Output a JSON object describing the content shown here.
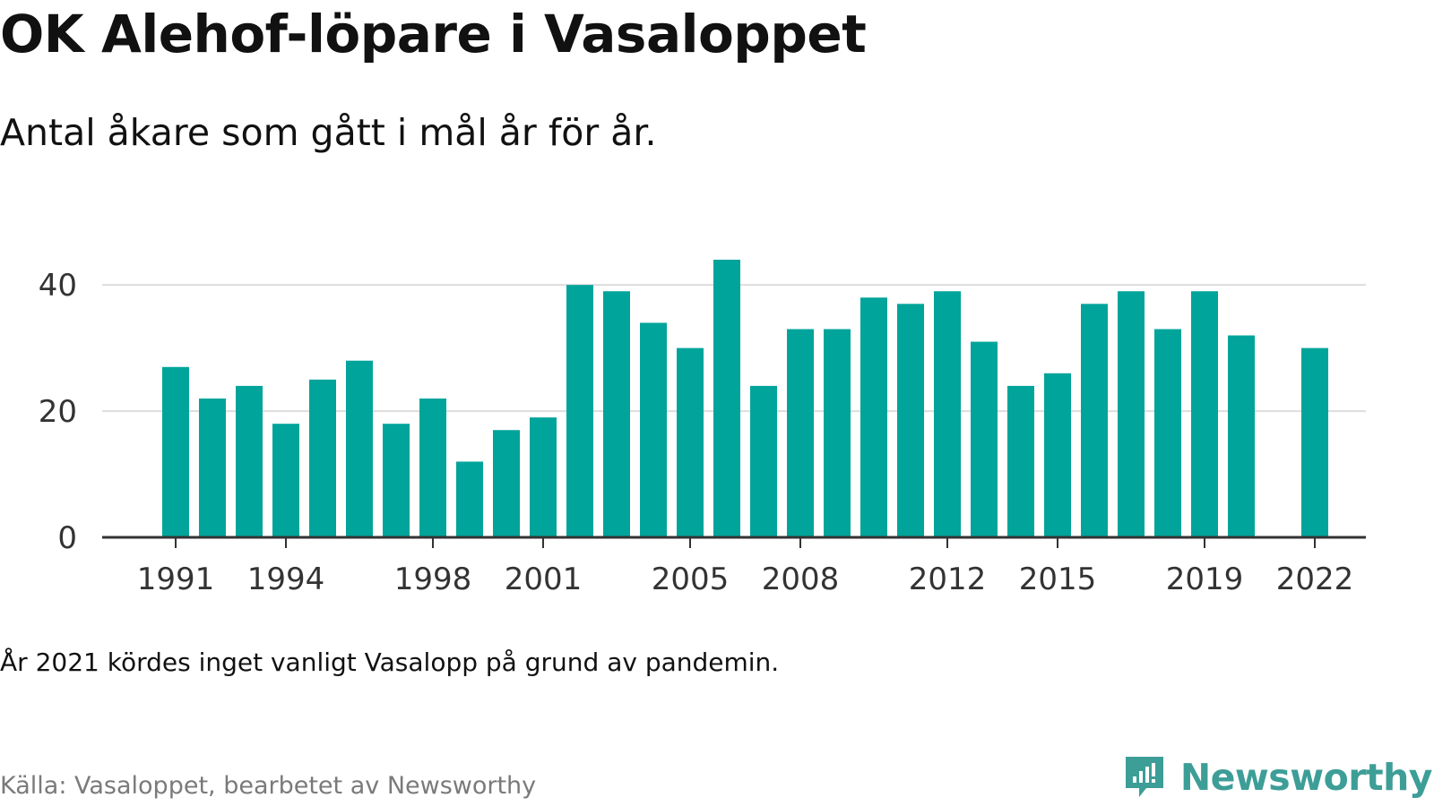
{
  "header": {
    "title": "OK Alehof-löpare i Vasaloppet",
    "subtitle": "Antal åkare som gått i mål år för år."
  },
  "footer": {
    "note": "År 2021 kördes inget vanligt Vasalopp på grund av pandemin.",
    "source": "Källa: Vasaloppet, bearbetet av Newsworthy"
  },
  "brand": {
    "name": "Newsworthy",
    "logo_icon": "newsworthy-bar-chart-logo-icon",
    "color": "#3d9e97"
  },
  "colors": {
    "bar": "#00a49a",
    "grid": "#dddddd",
    "axis": "#333333",
    "tick_text": "#333333"
  },
  "chart_data": {
    "type": "bar",
    "title": "OK Alehof-löpare i Vasaloppet",
    "subtitle": "Antal åkare som gått i mål år för år.",
    "xlabel": "",
    "ylabel": "",
    "ylim": [
      0,
      44
    ],
    "yticks": [
      0,
      20,
      40
    ],
    "xticks": [
      1991,
      1994,
      1998,
      2001,
      2005,
      2008,
      2012,
      2015,
      2019,
      2022
    ],
    "grid": true,
    "legend": "none",
    "categories": [
      1991,
      1992,
      1993,
      1994,
      1995,
      1996,
      1997,
      1998,
      1999,
      2000,
      2001,
      2002,
      2003,
      2004,
      2005,
      2006,
      2007,
      2008,
      2009,
      2010,
      2011,
      2012,
      2013,
      2014,
      2015,
      2016,
      2017,
      2018,
      2019,
      2020,
      2021,
      2022
    ],
    "values": [
      27,
      22,
      24,
      18,
      25,
      28,
      18,
      22,
      12,
      17,
      19,
      40,
      39,
      34,
      30,
      44,
      24,
      33,
      33,
      38,
      37,
      39,
      31,
      24,
      26,
      37,
      39,
      33,
      39,
      32,
      null,
      30
    ]
  }
}
